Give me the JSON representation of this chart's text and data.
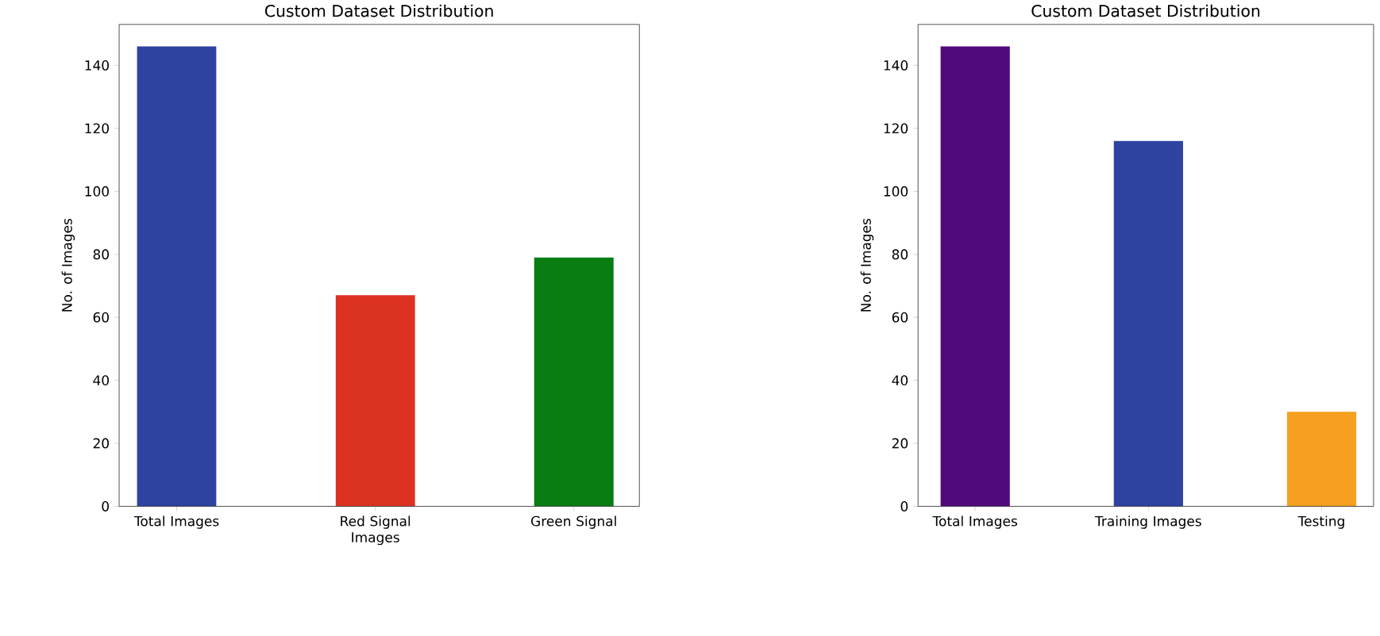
{
  "chart_data": [
    {
      "type": "bar",
      "title": "Custom Dataset Distribution",
      "ylabel": "No. of Images",
      "categories": [
        "Total Images",
        "Red Signal Images",
        "Green Signal"
      ],
      "values": [
        146,
        67,
        79
      ],
      "colors": [
        "#2e43a0",
        "#dc3222",
        "#087d12"
      ],
      "ylim": [
        0,
        153
      ],
      "yticks": [
        0,
        20,
        40,
        60,
        80,
        100,
        120,
        140
      ]
    },
    {
      "type": "bar",
      "title": "Custom Dataset Distribution",
      "ylabel": "No. of Images",
      "categories": [
        "Total Images",
        "Training Images",
        "Testing"
      ],
      "values": [
        146,
        116,
        30
      ],
      "colors": [
        "#510a7c",
        "#2e43a0",
        "#f5a01e"
      ],
      "ylim": [
        0,
        153
      ],
      "yticks": [
        0,
        20,
        40,
        60,
        80,
        100,
        120,
        140
      ]
    }
  ]
}
